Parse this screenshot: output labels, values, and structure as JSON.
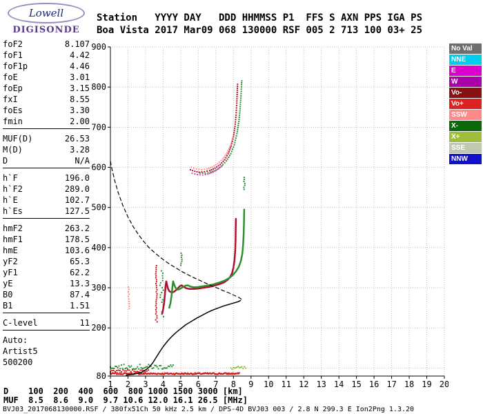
{
  "logo": {
    "title": "Lowell",
    "subtitle": "DIGISONDE"
  },
  "header": {
    "line1": "Station   YYYY DAY   DDD HHMMSS P1  FFS S AXN PPS IGA PS",
    "line2": "Boa Vista 2017 Mar09 068 130000 RSF 005 2 713 100 03+ 25"
  },
  "params": {
    "groups": [
      {
        "rows": [
          {
            "label": "foF2",
            "value": "8.107"
          },
          {
            "label": "foF1",
            "value": "4.42"
          },
          {
            "label": "foF1p",
            "value": "4.46"
          },
          {
            "label": "foE",
            "value": "3.01"
          },
          {
            "label": "foEp",
            "value": "3.15"
          },
          {
            "label": "fxI",
            "value": "8.55"
          },
          {
            "label": "foEs",
            "value": "3.30"
          },
          {
            "label": "fmin",
            "value": "2.00"
          }
        ]
      },
      {
        "rows": [
          {
            "label": "MUF(D)",
            "value": "26.53"
          },
          {
            "label": "M(D)",
            "value": "3.28"
          },
          {
            "label": "D",
            "value": "N/A"
          }
        ]
      },
      {
        "rows": [
          {
            "label": "h`F",
            "value": "196.0"
          },
          {
            "label": "h`F2",
            "value": "289.0"
          },
          {
            "label": "h`E",
            "value": "102.7"
          },
          {
            "label": "h`Es",
            "value": "127.5"
          }
        ]
      },
      {
        "rows": [
          {
            "label": "hmF2",
            "value": "263.2"
          },
          {
            "label": "hmF1",
            "value": "178.5"
          },
          {
            "label": "hmE",
            "value": "103.6"
          },
          {
            "label": "yF2",
            "value": "65.3"
          },
          {
            "label": "yF1",
            "value": "62.2"
          },
          {
            "label": "yE",
            "value": "13.3"
          },
          {
            "label": "B0",
            "value": "87.4"
          },
          {
            "label": "B1",
            "value": "1.51"
          }
        ]
      },
      {
        "rows": [
          {
            "label": "C-level",
            "value": "11"
          }
        ]
      },
      {
        "rows": [
          {
            "label": "Auto:",
            "value": ""
          },
          {
            "label": "Artist5",
            "value": ""
          },
          {
            "label": "500200",
            "value": ""
          }
        ]
      }
    ]
  },
  "legend": {
    "items": [
      {
        "label": "No Val",
        "color": "#6e6e6e"
      },
      {
        "label": "NNE",
        "color": "#00ccee"
      },
      {
        "label": "E",
        "color": "#dd00cc"
      },
      {
        "label": "W",
        "color": "#aa00aa"
      },
      {
        "label": "Vo-",
        "color": "#881111"
      },
      {
        "label": "Vo+",
        "color": "#dd2222"
      },
      {
        "label": "SSW",
        "color": "#ff8888"
      },
      {
        "label": "X-",
        "color": "#0a6a0a"
      },
      {
        "label": "X+",
        "color": "#9ebe3c"
      },
      {
        "label": "SSE",
        "color": "#c0c8b0"
      },
      {
        "label": "NNW",
        "color": "#1111cc"
      }
    ]
  },
  "bottom": {
    "d_line": "D    100  200  400  600  800 1000 1500 3000 [km]",
    "muf_line": "MUF  8.5  8.6  9.0  9.7 10.6 12.0 16.1 26.5 [MHz]",
    "footer": "BVJ03_2017068130000.RSF / 380fx51Ch 50 kHz 2.5 km / DPS-4D BVJ03 003 / 2.8 N 299.3 E Ion2Png 1.3.20"
  },
  "chart_data": {
    "type": "scatter",
    "title": "Digisonde ionogram Boa Vista 2017-03-09 13:00:00",
    "xlabel": "[MHz]",
    "ylabel": "[km]",
    "xlim": [
      1,
      20
    ],
    "ylim": [
      80,
      900
    ],
    "x_ticks": [
      1,
      2,
      3,
      4,
      5,
      6,
      7,
      8,
      9,
      10,
      11,
      12,
      13,
      14,
      15,
      16,
      17,
      18,
      19,
      20
    ],
    "y_ticks": [
      80,
      200,
      300,
      400,
      500,
      600,
      700,
      800,
      900
    ],
    "grid_y": [
      100,
      200,
      300,
      400,
      500,
      600,
      700,
      800,
      900
    ],
    "grid": true,
    "legend_position": "right",
    "key_values": {
      "foF2": 8.107,
      "fxI": 8.55,
      "foEs": 3.3,
      "fmin": 2.0,
      "hmF2": 263.2
    },
    "series": [
      {
        "name": "es-layer-o",
        "style": "hspan",
        "color": "#cc1111",
        "y": 86,
        "x0": 1.0,
        "x1": 8.35,
        "step": 0.045,
        "jitter": 2
      },
      {
        "name": "es-layer-o-upper",
        "style": "hspan",
        "color": "#cc1111",
        "y": 93,
        "x0": 1.0,
        "x1": 3.2,
        "step": 0.09,
        "jitter": 3
      },
      {
        "name": "es-layer-x",
        "style": "hspan",
        "color": "#2f8f2f",
        "y": 103,
        "x0": 1.0,
        "x1": 4.6,
        "step": 0.07,
        "jitter": 6
      },
      {
        "name": "es-layer-x-right",
        "style": "hspan",
        "color": "#8fbf3f",
        "y": 100,
        "x0": 7.85,
        "x1": 8.7,
        "step": 0.07,
        "jitter": 4
      },
      {
        "name": "spread-ssw",
        "style": "vspan",
        "color": "#ff9090",
        "x": 2.05,
        "y0": 248,
        "y1": 303,
        "step": 6,
        "jx": 0.03
      },
      {
        "name": "spread-o",
        "style": "vspan",
        "color": "#cc1111",
        "x": 3.62,
        "y0": 215,
        "y1": 358,
        "step": 5,
        "jx": 0.04
      },
      {
        "name": "spread-x",
        "style": "vspan",
        "color": "#2f8f2f",
        "x": 3.92,
        "y0": 228,
        "y1": 345,
        "step": 6,
        "jx": 0.1
      },
      {
        "name": "patch-x-mid",
        "style": "vspan",
        "color": "#2f8f2f",
        "x": 5.05,
        "y0": 356,
        "y1": 386,
        "step": 5,
        "jx": 0.05
      },
      {
        "name": "patch-x-high",
        "style": "vspan",
        "color": "#2f8f2f",
        "x": 8.62,
        "y0": 545,
        "y1": 578,
        "step": 5,
        "jx": 0.03
      },
      {
        "name": "f-trace-o",
        "style": "line",
        "color": "#b01030",
        "width": 2.5,
        "points": [
          [
            3.95,
            236
          ],
          [
            4.0,
            246
          ],
          [
            4.05,
            260
          ],
          [
            4.1,
            283
          ],
          [
            4.14,
            305
          ],
          [
            4.18,
            316
          ],
          [
            4.22,
            308
          ],
          [
            4.28,
            297
          ],
          [
            4.36,
            291
          ],
          [
            4.5,
            288
          ],
          [
            4.65,
            291
          ],
          [
            4.8,
            297
          ],
          [
            4.95,
            304
          ],
          [
            5.05,
            306
          ],
          [
            5.15,
            303
          ],
          [
            5.3,
            299
          ],
          [
            5.5,
            297
          ],
          [
            5.75,
            297
          ],
          [
            6.0,
            298
          ],
          [
            6.3,
            300
          ],
          [
            6.6,
            302
          ],
          [
            6.9,
            305
          ],
          [
            7.2,
            309
          ],
          [
            7.45,
            313
          ],
          [
            7.65,
            319
          ],
          [
            7.8,
            326
          ],
          [
            7.92,
            336
          ],
          [
            8.0,
            350
          ],
          [
            8.06,
            368
          ],
          [
            8.1,
            392
          ],
          [
            8.12,
            420
          ],
          [
            8.13,
            448
          ],
          [
            8.14,
            472
          ]
        ]
      },
      {
        "name": "f-trace-x",
        "style": "line",
        "color": "#2f8f2f",
        "width": 2.5,
        "points": [
          [
            4.35,
            250
          ],
          [
            4.42,
            262
          ],
          [
            4.48,
            280
          ],
          [
            4.53,
            302
          ],
          [
            4.57,
            316
          ],
          [
            4.62,
            309
          ],
          [
            4.7,
            300
          ],
          [
            4.82,
            295
          ],
          [
            4.95,
            297
          ],
          [
            5.1,
            301
          ],
          [
            5.25,
            305
          ],
          [
            5.4,
            306
          ],
          [
            5.55,
            303
          ],
          [
            5.75,
            301
          ],
          [
            6.0,
            302
          ],
          [
            6.3,
            304
          ],
          [
            6.6,
            306
          ],
          [
            6.9,
            309
          ],
          [
            7.2,
            313
          ],
          [
            7.5,
            318
          ],
          [
            7.75,
            324
          ],
          [
            7.95,
            331
          ],
          [
            8.15,
            341
          ],
          [
            8.3,
            352
          ],
          [
            8.42,
            366
          ],
          [
            8.5,
            384
          ],
          [
            8.55,
            406
          ],
          [
            8.58,
            432
          ],
          [
            8.6,
            462
          ],
          [
            8.61,
            495
          ]
        ]
      },
      {
        "name": "hop2-o",
        "style": "dotline",
        "color": "#b01030",
        "points": [
          [
            5.55,
            594
          ],
          [
            5.8,
            590
          ],
          [
            6.05,
            588
          ],
          [
            6.35,
            589
          ],
          [
            6.65,
            592
          ],
          [
            6.95,
            598
          ],
          [
            7.25,
            607
          ],
          [
            7.5,
            619
          ],
          [
            7.7,
            634
          ],
          [
            7.87,
            653
          ],
          [
            8.0,
            676
          ],
          [
            8.09,
            702
          ],
          [
            8.15,
            730
          ],
          [
            8.19,
            760
          ],
          [
            8.22,
            792
          ],
          [
            8.24,
            812
          ]
        ]
      },
      {
        "name": "hop2-x",
        "style": "dotline",
        "color": "#2f8f2f",
        "points": [
          [
            6.1,
            586
          ],
          [
            6.4,
            585
          ],
          [
            6.7,
            588
          ],
          [
            7.0,
            593
          ],
          [
            7.3,
            602
          ],
          [
            7.6,
            616
          ],
          [
            7.85,
            634
          ],
          [
            8.05,
            656
          ],
          [
            8.2,
            684
          ],
          [
            8.31,
            714
          ],
          [
            8.38,
            746
          ],
          [
            8.43,
            778
          ],
          [
            8.46,
            806
          ],
          [
            8.48,
            820
          ]
        ]
      },
      {
        "name": "hop2-ssw",
        "style": "dotline",
        "color": "#ff9090",
        "points": [
          [
            5.6,
            600
          ],
          [
            5.9,
            596
          ],
          [
            6.2,
            594
          ],
          [
            6.5,
            596
          ],
          [
            6.8,
            601
          ],
          [
            7.1,
            609
          ],
          [
            7.4,
            621
          ],
          [
            7.65,
            637
          ],
          [
            7.85,
            657
          ],
          [
            8.0,
            680
          ]
        ]
      },
      {
        "name": "hop2-e",
        "style": "dotline",
        "color": "#dd44cc",
        "points": [
          [
            5.65,
            585
          ],
          [
            5.95,
            582
          ],
          [
            6.25,
            581
          ],
          [
            6.55,
            583
          ],
          [
            6.85,
            588
          ],
          [
            7.15,
            596
          ],
          [
            7.45,
            608
          ]
        ]
      },
      {
        "name": "true-height-profile",
        "style": "line",
        "color": "#000000",
        "width": 1.5,
        "points": [
          [
            1.9,
            82
          ],
          [
            2.2,
            84
          ],
          [
            2.5,
            86
          ],
          [
            2.8,
            90
          ],
          [
            3.0,
            95
          ],
          [
            3.2,
            102
          ],
          [
            3.4,
            112
          ],
          [
            3.6,
            126
          ],
          [
            3.8,
            140
          ],
          [
            4.0,
            153
          ],
          [
            4.25,
            167
          ],
          [
            4.5,
            179
          ],
          [
            4.75,
            189
          ],
          [
            5.0,
            198
          ],
          [
            5.3,
            208
          ],
          [
            5.6,
            216
          ],
          [
            5.9,
            224
          ],
          [
            6.2,
            231
          ],
          [
            6.5,
            238
          ],
          [
            6.8,
            244
          ],
          [
            7.1,
            249
          ],
          [
            7.4,
            254
          ],
          [
            7.7,
            258
          ],
          [
            7.95,
            261
          ],
          [
            8.1,
            263
          ],
          [
            8.25,
            265
          ],
          [
            8.4,
            268
          ]
        ]
      },
      {
        "name": "muf-transmission-curve",
        "style": "dashed",
        "color": "#000000",
        "width": 1.2,
        "points": [
          [
            1.0,
            615
          ],
          [
            1.1,
            594
          ],
          [
            1.25,
            566
          ],
          [
            1.45,
            536
          ],
          [
            1.7,
            506
          ],
          [
            2.0,
            476
          ],
          [
            2.3,
            452
          ],
          [
            2.6,
            432
          ],
          [
            2.9,
            415
          ],
          [
            3.2,
            400
          ],
          [
            3.5,
            388
          ],
          [
            3.8,
            377
          ],
          [
            4.1,
            367
          ],
          [
            4.4,
            358
          ],
          [
            4.7,
            350
          ],
          [
            5.0,
            342
          ],
          [
            5.3,
            335
          ],
          [
            5.6,
            328
          ],
          [
            5.9,
            322
          ],
          [
            6.2,
            316
          ],
          [
            6.5,
            310
          ],
          [
            6.8,
            304
          ],
          [
            7.1,
            299
          ],
          [
            7.4,
            293
          ],
          [
            7.7,
            288
          ],
          [
            8.0,
            282
          ],
          [
            8.3,
            276
          ],
          [
            8.5,
            270
          ]
        ]
      }
    ]
  }
}
